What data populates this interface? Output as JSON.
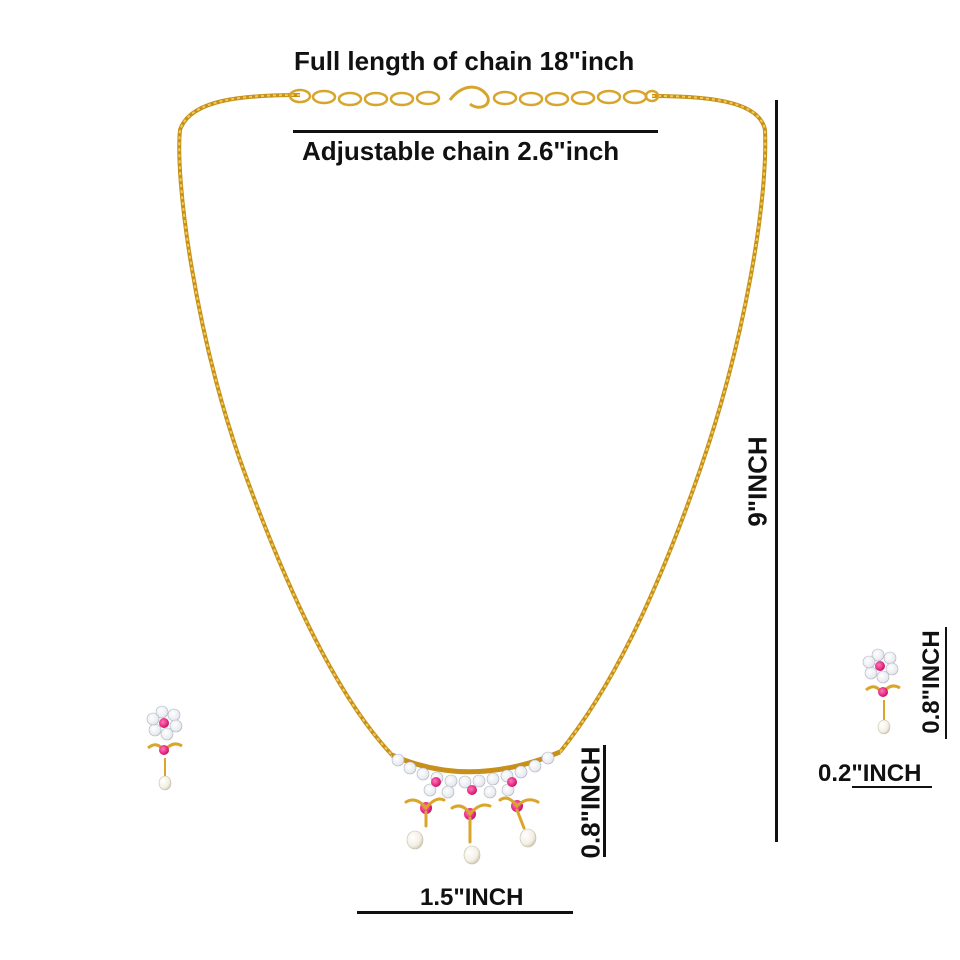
{
  "labels": {
    "full_length": "Full length of chain 18\"inch",
    "adjustable": "Adjustable chain 2.6\"inch",
    "drop_length": "9\"INCH",
    "pendant_height": "0.8\"INCH",
    "pendant_width": "1.5\"INCH",
    "earring_height": "0.8\"INCH",
    "earring_width": "0.2\"INCH"
  },
  "colors": {
    "gold": "#e9b730",
    "gold_dark": "#c6901a",
    "ruby": "#e0207a",
    "crystal": "#f4f4f8",
    "pearl": "#fbf7ee",
    "ink": "#111111"
  }
}
